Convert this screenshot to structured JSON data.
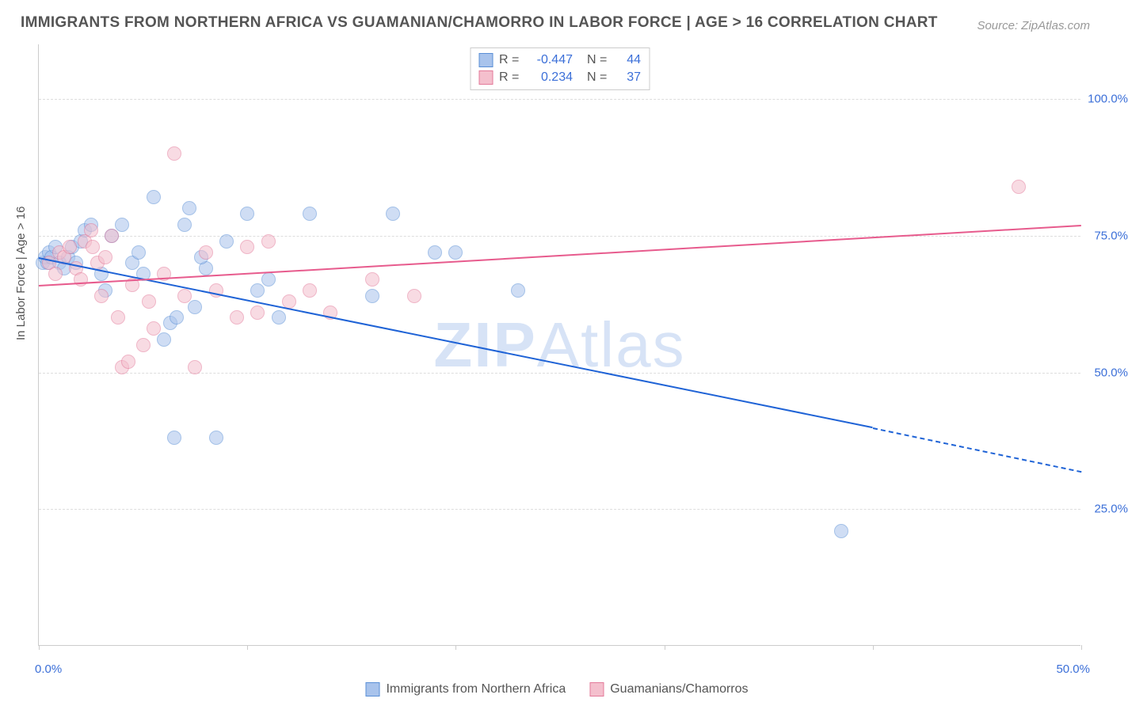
{
  "title": "IMMIGRANTS FROM NORTHERN AFRICA VS GUAMANIAN/CHAMORRO IN LABOR FORCE | AGE > 16 CORRELATION CHART",
  "source": "Source: ZipAtlas.com",
  "ylabel": "In Labor Force | Age > 16",
  "watermark_part1": "ZIP",
  "watermark_part2": "Atlas",
  "chart": {
    "type": "scatter",
    "background_color": "#ffffff",
    "grid_color": "#dddddd",
    "axis_color": "#cccccc",
    "tick_label_color": "#3b6fd8",
    "text_color": "#555555",
    "xlim": [
      0,
      50
    ],
    "ylim": [
      0,
      110
    ],
    "xticks": [
      0,
      10,
      20,
      30,
      40,
      50
    ],
    "xtick_labels": {
      "0": "0.0%",
      "50": "50.0%"
    },
    "yticks": [
      25,
      50,
      75,
      100
    ],
    "ytick_labels": {
      "25": "25.0%",
      "50": "50.0%",
      "75": "75.0%",
      "100": "100.0%"
    },
    "marker_radius": 9,
    "marker_opacity": 0.55,
    "marker_border_width": 1.5,
    "series": [
      {
        "name": "Immigrants from Northern Africa",
        "fill_color": "#a8c3ec",
        "border_color": "#5a8fd6",
        "stats": {
          "R": "-0.447",
          "N": "44"
        },
        "trend": {
          "x1": 0,
          "y1": 71,
          "x2": 40,
          "y2": 40,
          "solid": true,
          "color": "#1f63d6",
          "width": 2.2,
          "dash_ext": {
            "x2": 50,
            "y2": 32
          }
        },
        "points": [
          [
            0.2,
            70
          ],
          [
            0.3,
            71
          ],
          [
            0.4,
            70
          ],
          [
            0.5,
            72
          ],
          [
            0.6,
            71
          ],
          [
            0.8,
            73
          ],
          [
            1.0,
            70
          ],
          [
            1.2,
            69
          ],
          [
            1.4,
            71
          ],
          [
            1.6,
            73
          ],
          [
            1.8,
            70
          ],
          [
            2.0,
            74
          ],
          [
            2.2,
            76
          ],
          [
            2.5,
            77
          ],
          [
            3.0,
            68
          ],
          [
            3.2,
            65
          ],
          [
            3.5,
            75
          ],
          [
            4.0,
            77
          ],
          [
            4.5,
            70
          ],
          [
            5.0,
            68
          ],
          [
            5.5,
            82
          ],
          [
            6.0,
            56
          ],
          [
            6.3,
            59
          ],
          [
            6.5,
            38
          ],
          [
            6.6,
            60
          ],
          [
            7.0,
            77
          ],
          [
            7.2,
            80
          ],
          [
            7.5,
            62
          ],
          [
            8.0,
            69
          ],
          [
            8.5,
            38
          ],
          [
            9.0,
            74
          ],
          [
            10.0,
            79
          ],
          [
            10.5,
            65
          ],
          [
            11.0,
            67
          ],
          [
            11.5,
            60
          ],
          [
            13.0,
            79
          ],
          [
            16.0,
            64
          ],
          [
            17.0,
            79
          ],
          [
            19.0,
            72
          ],
          [
            20.0,
            72
          ],
          [
            23.0,
            65
          ],
          [
            38.5,
            21
          ],
          [
            7.8,
            71
          ],
          [
            4.8,
            72
          ]
        ]
      },
      {
        "name": "Guamanians/Chamorros",
        "fill_color": "#f4bfcd",
        "border_color": "#e37a9a",
        "stats": {
          "R": "0.234",
          "N": "37"
        },
        "trend": {
          "x1": 0,
          "y1": 66,
          "x2": 50,
          "y2": 77,
          "solid": true,
          "color": "#e75b8d",
          "width": 2.2
        },
        "points": [
          [
            0.5,
            70
          ],
          [
            0.8,
            68
          ],
          [
            1.0,
            72
          ],
          [
            1.2,
            71
          ],
          [
            1.5,
            73
          ],
          [
            1.8,
            69
          ],
          [
            2.0,
            67
          ],
          [
            2.2,
            74
          ],
          [
            2.5,
            76
          ],
          [
            2.8,
            70
          ],
          [
            3.0,
            64
          ],
          [
            3.5,
            75
          ],
          [
            3.8,
            60
          ],
          [
            4.0,
            51
          ],
          [
            4.3,
            52
          ],
          [
            4.5,
            66
          ],
          [
            5.0,
            55
          ],
          [
            5.3,
            63
          ],
          [
            5.5,
            58
          ],
          [
            6.0,
            68
          ],
          [
            6.5,
            90
          ],
          [
            7.0,
            64
          ],
          [
            7.5,
            51
          ],
          [
            8.0,
            72
          ],
          [
            8.5,
            65
          ],
          [
            9.5,
            60
          ],
          [
            10.0,
            73
          ],
          [
            10.5,
            61
          ],
          [
            11.0,
            74
          ],
          [
            12.0,
            63
          ],
          [
            13.0,
            65
          ],
          [
            14.0,
            61
          ],
          [
            16.0,
            67
          ],
          [
            18.0,
            64
          ],
          [
            47.0,
            84
          ],
          [
            2.6,
            73
          ],
          [
            3.2,
            71
          ]
        ]
      }
    ]
  },
  "legend_top": {
    "r_label": "R =",
    "n_label": "N ="
  },
  "legend_bottom": [
    {
      "label": "Immigrants from Northern Africa",
      "fill": "#a8c3ec",
      "border": "#5a8fd6"
    },
    {
      "label": "Guamanians/Chamorros",
      "fill": "#f4bfcd",
      "border": "#e37a9a"
    }
  ]
}
